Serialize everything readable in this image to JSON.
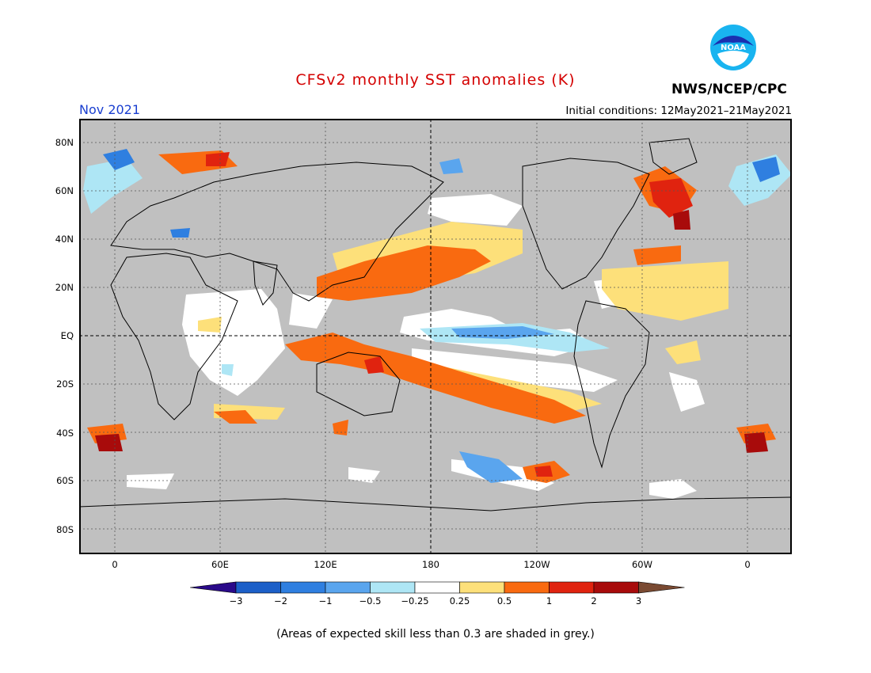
{
  "header": {
    "title": "CFSv2 monthly SST anomalies (K)",
    "title_color": "#d40000",
    "date": "Nov 2021",
    "date_color": "#1a3fd0",
    "initial_conditions": "Initial conditions: 12May2021–21May2021",
    "agency": "NWS/NCEP/CPC",
    "logo_text": "NOAA"
  },
  "map": {
    "background_grey": "#c0c0c0",
    "lat_labels": [
      "80N",
      "60N",
      "40N",
      "20N",
      "EQ",
      "20S",
      "40S",
      "60S",
      "80S"
    ],
    "lon_labels": [
      "0",
      "60E",
      "120E",
      "180",
      "120W",
      "60W",
      "0"
    ]
  },
  "colorbar": {
    "ticks": [
      "−3",
      "−2",
      "−1",
      "−0.5",
      "−0.25",
      "0.25",
      "0.5",
      "1",
      "2",
      "3"
    ],
    "colors": [
      "#2a0a8a",
      "#1c5fc8",
      "#2f7fe0",
      "#5aa5ee",
      "#aee6f5",
      "#ffffff",
      "#fde07a",
      "#f96a10",
      "#e0230f",
      "#a80b0b",
      "#7a4a32"
    ]
  },
  "footnote": "(Areas of expected skill less than 0.3 are shaded in grey.)"
}
